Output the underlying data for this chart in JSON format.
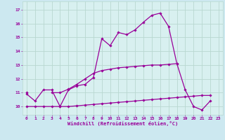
{
  "xlabel": "Windchill (Refroidissement éolien,°C)",
  "background_color": "#cce8f0",
  "plot_bg_color": "#d8f0f0",
  "line_color": "#990099",
  "grid_color": "#b8d8d0",
  "xlabel_bg": "#8888aa",
  "x_ticks": [
    0,
    1,
    2,
    3,
    4,
    5,
    6,
    7,
    8,
    9,
    10,
    11,
    12,
    13,
    14,
    15,
    16,
    17,
    18,
    19,
    20,
    21,
    22,
    23
  ],
  "y_ticks": [
    10,
    11,
    12,
    13,
    14,
    15,
    16,
    17
  ],
  "ylim": [
    9.4,
    17.6
  ],
  "xlim": [
    -0.5,
    23.5
  ],
  "curve1_y": [
    10.9,
    10.4,
    11.2,
    11.2,
    10.0,
    11.2,
    11.5,
    11.6,
    12.1,
    14.9,
    14.4,
    15.35,
    15.2,
    15.55,
    16.1,
    16.6,
    16.75,
    15.8,
    13.1,
    11.2,
    10.0,
    9.75,
    10.4,
    null
  ],
  "curve2_y": [
    11.0,
    null,
    null,
    11.0,
    11.0,
    11.25,
    11.6,
    12.0,
    12.4,
    12.6,
    12.7,
    12.8,
    12.85,
    12.9,
    12.95,
    13.0,
    13.0,
    13.05,
    13.1,
    null,
    null,
    null,
    null,
    null
  ],
  "curve3_y": [
    10.0,
    10.0,
    10.0,
    10.0,
    10.0,
    10.0,
    10.05,
    10.1,
    10.15,
    10.2,
    10.25,
    10.3,
    10.35,
    10.4,
    10.45,
    10.5,
    10.55,
    10.6,
    10.65,
    10.7,
    10.75,
    10.8,
    10.8,
    null
  ]
}
